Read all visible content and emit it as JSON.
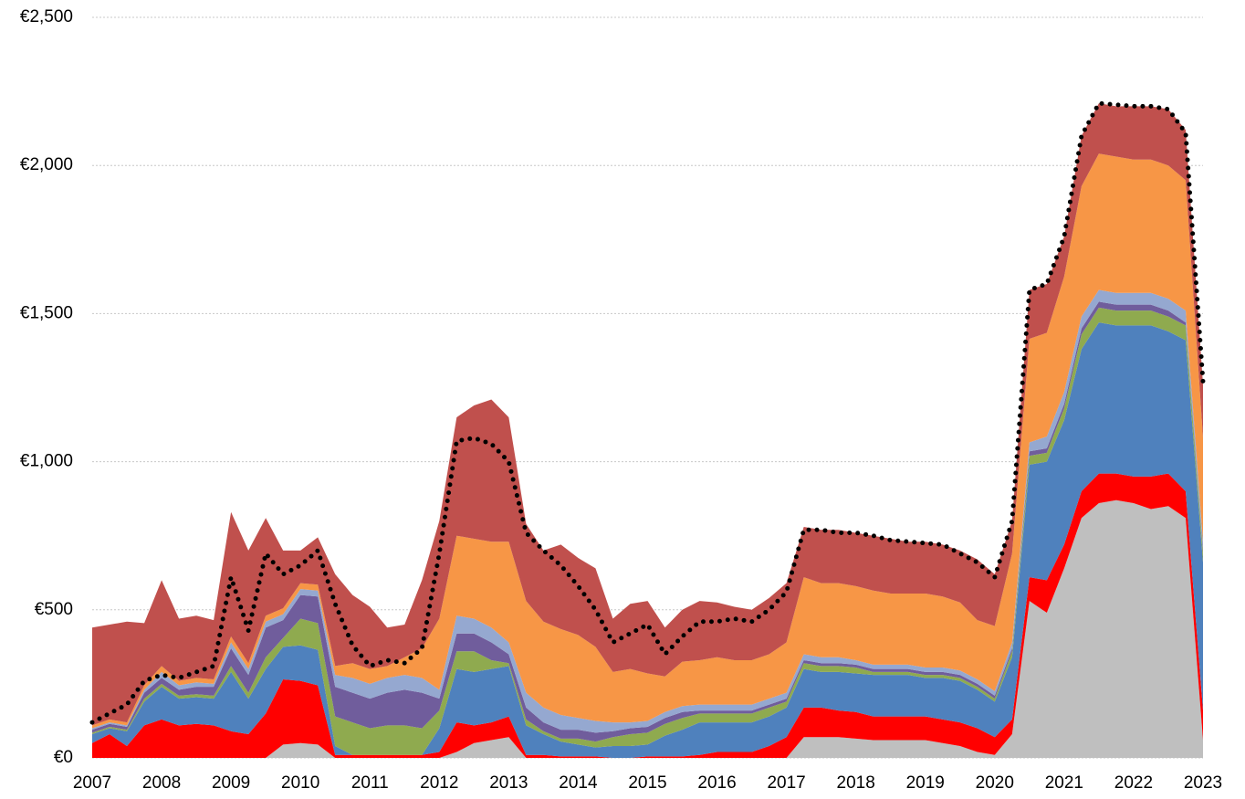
{
  "chart_data": {
    "type": "stacked_area",
    "x": [
      2007,
      2007.25,
      2007.5,
      2007.75,
      2008,
      2008.25,
      2008.5,
      2008.75,
      2009,
      2009.25,
      2009.5,
      2009.75,
      2010,
      2010.25,
      2010.5,
      2010.75,
      2011,
      2011.25,
      2011.5,
      2011.75,
      2012,
      2012.25,
      2012.5,
      2012.75,
      2013,
      2013.25,
      2013.5,
      2013.75,
      2014,
      2014.25,
      2014.5,
      2014.75,
      2015,
      2015.25,
      2015.5,
      2015.75,
      2016,
      2016.25,
      2016.5,
      2016.75,
      2017,
      2017.25,
      2017.5,
      2017.75,
      2018,
      2018.25,
      2018.5,
      2018.75,
      2019,
      2019.25,
      2019.5,
      2019.75,
      2020,
      2020.25,
      2020.5,
      2020.75,
      2021,
      2021.25,
      2021.5,
      2021.75,
      2022,
      2022.25,
      2022.5,
      2022.75,
      2023
    ],
    "series": [
      {
        "color": "#bfbfbf",
        "values": [
          0,
          0,
          0,
          0,
          0,
          0,
          0,
          0,
          0,
          0,
          0,
          45,
          50,
          45,
          0,
          0,
          0,
          0,
          0,
          0,
          0,
          20,
          50,
          60,
          70,
          0,
          0,
          0,
          0,
          0,
          0,
          0,
          0,
          0,
          0,
          0,
          0,
          0,
          0,
          0,
          0,
          70,
          70,
          70,
          65,
          60,
          60,
          60,
          60,
          50,
          40,
          20,
          10,
          80,
          530,
          490,
          640,
          810,
          860,
          870,
          860,
          840,
          850,
          810,
          60
        ]
      },
      {
        "color": "#ff0000",
        "values": [
          50,
          80,
          40,
          110,
          130,
          110,
          115,
          110,
          90,
          80,
          150,
          220,
          210,
          200,
          10,
          10,
          10,
          10,
          10,
          10,
          20,
          100,
          60,
          60,
          70,
          10,
          10,
          5,
          5,
          5,
          0,
          0,
          5,
          5,
          5,
          10,
          20,
          20,
          20,
          40,
          70,
          100,
          100,
          90,
          90,
          80,
          80,
          80,
          80,
          80,
          80,
          80,
          60,
          50,
          80,
          110,
          80,
          90,
          100,
          90,
          90,
          110,
          110,
          90,
          100
        ]
      },
      {
        "color": "#4f81bd",
        "values": [
          30,
          20,
          50,
          80,
          110,
          90,
          90,
          90,
          200,
          120,
          150,
          110,
          120,
          120,
          30,
          0,
          0,
          0,
          0,
          0,
          80,
          180,
          180,
          180,
          170,
          100,
          70,
          50,
          40,
          30,
          40,
          40,
          40,
          70,
          90,
          110,
          100,
          100,
          100,
          100,
          100,
          130,
          120,
          130,
          130,
          140,
          140,
          140,
          130,
          140,
          140,
          130,
          120,
          210,
          380,
          400,
          420,
          480,
          510,
          500,
          510,
          510,
          480,
          510,
          500
        ]
      },
      {
        "color": "#8faa4f",
        "values": [
          5,
          5,
          5,
          10,
          10,
          10,
          10,
          10,
          20,
          20,
          40,
          30,
          90,
          90,
          100,
          110,
          90,
          100,
          100,
          90,
          60,
          60,
          70,
          30,
          10,
          20,
          10,
          10,
          20,
          20,
          30,
          40,
          40,
          40,
          40,
          30,
          30,
          30,
          30,
          30,
          20,
          20,
          20,
          20,
          20,
          10,
          10,
          10,
          10,
          10,
          10,
          10,
          10,
          20,
          30,
          30,
          40,
          50,
          50,
          50,
          50,
          50,
          50,
          50,
          30
        ]
      },
      {
        "color": "#705d9c",
        "values": [
          10,
          10,
          10,
          20,
          20,
          20,
          25,
          30,
          60,
          60,
          100,
          60,
          80,
          90,
          100,
          100,
          100,
          110,
          120,
          120,
          40,
          60,
          60,
          60,
          30,
          40,
          30,
          30,
          30,
          30,
          20,
          20,
          20,
          20,
          20,
          10,
          10,
          10,
          10,
          10,
          10,
          10,
          10,
          10,
          10,
          10,
          10,
          10,
          10,
          10,
          10,
          10,
          10,
          10,
          15,
          15,
          15,
          20,
          20,
          20,
          20,
          20,
          20,
          10,
          10
        ]
      },
      {
        "color": "#95a8d0",
        "values": [
          5,
          5,
          5,
          10,
          20,
          15,
          15,
          10,
          20,
          20,
          20,
          20,
          20,
          20,
          40,
          50,
          50,
          50,
          50,
          50,
          30,
          60,
          50,
          50,
          40,
          50,
          50,
          50,
          40,
          40,
          30,
          20,
          20,
          20,
          20,
          20,
          20,
          20,
          20,
          20,
          20,
          20,
          20,
          20,
          15,
          15,
          15,
          15,
          15,
          15,
          15,
          15,
          15,
          20,
          30,
          40,
          40,
          40,
          40,
          40,
          40,
          40,
          40,
          40,
          30
        ]
      },
      {
        "color": "#f79646",
        "values": [
          10,
          10,
          10,
          15,
          20,
          15,
          15,
          15,
          20,
          20,
          20,
          20,
          20,
          20,
          30,
          50,
          50,
          40,
          60,
          100,
          240,
          270,
          270,
          290,
          340,
          310,
          290,
          290,
          280,
          250,
          170,
          180,
          160,
          120,
          150,
          150,
          160,
          150,
          150,
          150,
          170,
          260,
          250,
          250,
          250,
          250,
          240,
          240,
          250,
          240,
          230,
          200,
          220,
          300,
          350,
          350,
          390,
          440,
          460,
          460,
          450,
          450,
          450,
          440,
          350
        ]
      },
      {
        "color": "#c0504d",
        "values": [
          330,
          320,
          340,
          210,
          290,
          210,
          210,
          200,
          420,
          380,
          330,
          195,
          110,
          160,
          310,
          230,
          210,
          130,
          110,
          230,
          330,
          400,
          450,
          480,
          420,
          260,
          240,
          285,
          260,
          265,
          180,
          220,
          245,
          165,
          175,
          200,
          185,
          180,
          170,
          190,
          200,
          170,
          180,
          180,
          180,
          185,
          185,
          175,
          175,
          175,
          175,
          205,
          175,
          110,
          165,
          165,
          135,
          170,
          170,
          170,
          180,
          180,
          190,
          170,
          180
        ]
      }
    ],
    "overlay": {
      "color": "#000000",
      "style": "dotted",
      "values": [
        120,
        150,
        180,
        260,
        280,
        270,
        290,
        310,
        610,
        430,
        690,
        620,
        650,
        700,
        520,
        380,
        310,
        330,
        320,
        370,
        690,
        1070,
        1080,
        1060,
        1000,
        760,
        700,
        650,
        580,
        500,
        390,
        420,
        450,
        350,
        410,
        460,
        460,
        470,
        460,
        500,
        560,
        770,
        770,
        760,
        760,
        750,
        735,
        730,
        725,
        720,
        690,
        660,
        610,
        800,
        1580,
        1600,
        1760,
        2100,
        2210,
        2205,
        2200,
        2200,
        2190,
        2110,
        1270
      ]
    },
    "xlim": [
      2007,
      2023
    ],
    "xticks": [
      2007,
      2008,
      2009,
      2010,
      2011,
      2012,
      2013,
      2014,
      2015,
      2016,
      2017,
      2018,
      2019,
      2020,
      2021,
      2022,
      2023
    ],
    "ylim": [
      0,
      2500
    ],
    "yticks": [
      {
        "value": 0,
        "label": "€0"
      },
      {
        "value": 500,
        "label": "€500"
      },
      {
        "value": 1000,
        "label": "€1,000"
      },
      {
        "value": 1500,
        "label": "€1,500"
      },
      {
        "value": 2000,
        "label": "€2,000"
      },
      {
        "value": 2500,
        "label": "€2,500"
      }
    ],
    "grid": true
  }
}
